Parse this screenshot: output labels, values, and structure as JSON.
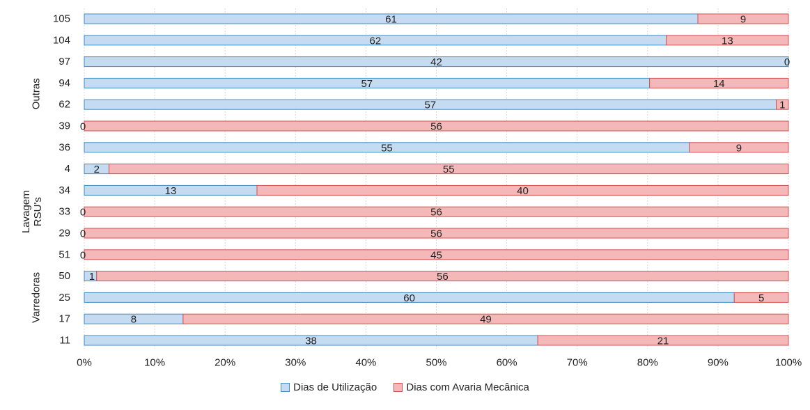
{
  "chart_data": {
    "type": "bar",
    "orientation": "horizontal",
    "stacked": "percent",
    "categories": [
      "105",
      "104",
      "97",
      "94",
      "62",
      "39",
      "36",
      "4",
      "34",
      "33",
      "29",
      "51",
      "50",
      "25",
      "17",
      "11"
    ],
    "groups": [
      {
        "label": "Outras",
        "categories": [
          "105",
          "104",
          "97",
          "94",
          "62",
          "39",
          "36",
          "4"
        ]
      },
      {
        "label": "Lavagem RSU's",
        "categories": [
          "34",
          "33",
          "29"
        ]
      },
      {
        "label": "Varredoras",
        "categories": [
          "51",
          "50",
          "25",
          "17",
          "11"
        ]
      }
    ],
    "series": [
      {
        "name": "Dias de Utilização",
        "color": "#c5dbf1",
        "edge": "#3e8ec4",
        "values": [
          61,
          62,
          42,
          57,
          57,
          0,
          55,
          2,
          13,
          0,
          0,
          0,
          1,
          60,
          8,
          38
        ]
      },
      {
        "name": "Dias com Avaria Mecânica",
        "color": "#f4b8b8",
        "edge": "#d45050",
        "values": [
          9,
          13,
          0,
          14,
          1,
          56,
          9,
          55,
          40,
          56,
          56,
          45,
          56,
          5,
          49,
          21
        ]
      }
    ],
    "x_ticks": [
      "0%",
      "10%",
      "20%",
      "30%",
      "40%",
      "50%",
      "60%",
      "70%",
      "80%",
      "90%",
      "100%"
    ],
    "xlim": [
      0,
      100
    ],
    "grid": true,
    "legend_position": "bottom"
  }
}
